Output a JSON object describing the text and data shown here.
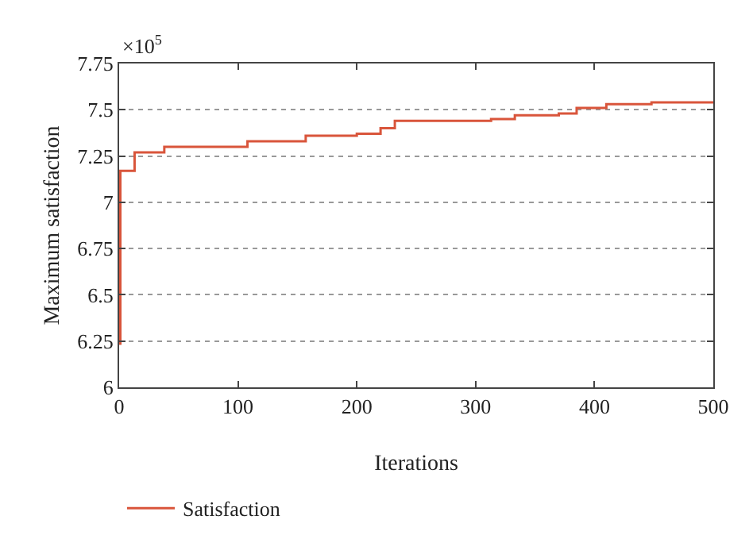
{
  "chart_data": {
    "type": "step",
    "xlabel": "Iterations",
    "ylabel": "Maximum satisfaction",
    "annotations": [
      "×10$^{5}$"
    ],
    "x": [
      1,
      1,
      13,
      38,
      108,
      157,
      200,
      220,
      232,
      313,
      333,
      370,
      385,
      410,
      448,
      500
    ],
    "series": [
      {
        "name": "Satisfaction",
        "color": "#d9553b",
        "values": [
          6.23,
          7.17,
          7.27,
          7.3,
          7.33,
          7.36,
          7.37,
          7.4,
          7.44,
          7.45,
          7.47,
          7.48,
          7.51,
          7.53,
          7.54,
          7.54
        ]
      }
    ],
    "xlim": [
      0,
      500
    ],
    "xticks": [
      0,
      100,
      200,
      300,
      400,
      500
    ],
    "ylim": [
      6,
      7.75
    ],
    "yticks": [
      6,
      6.25,
      6.5,
      6.75,
      7,
      7.25,
      7.5,
      7.75
    ],
    "grid": "y",
    "legend": "bottom",
    "line_style": "solid",
    "marker": "none"
  }
}
